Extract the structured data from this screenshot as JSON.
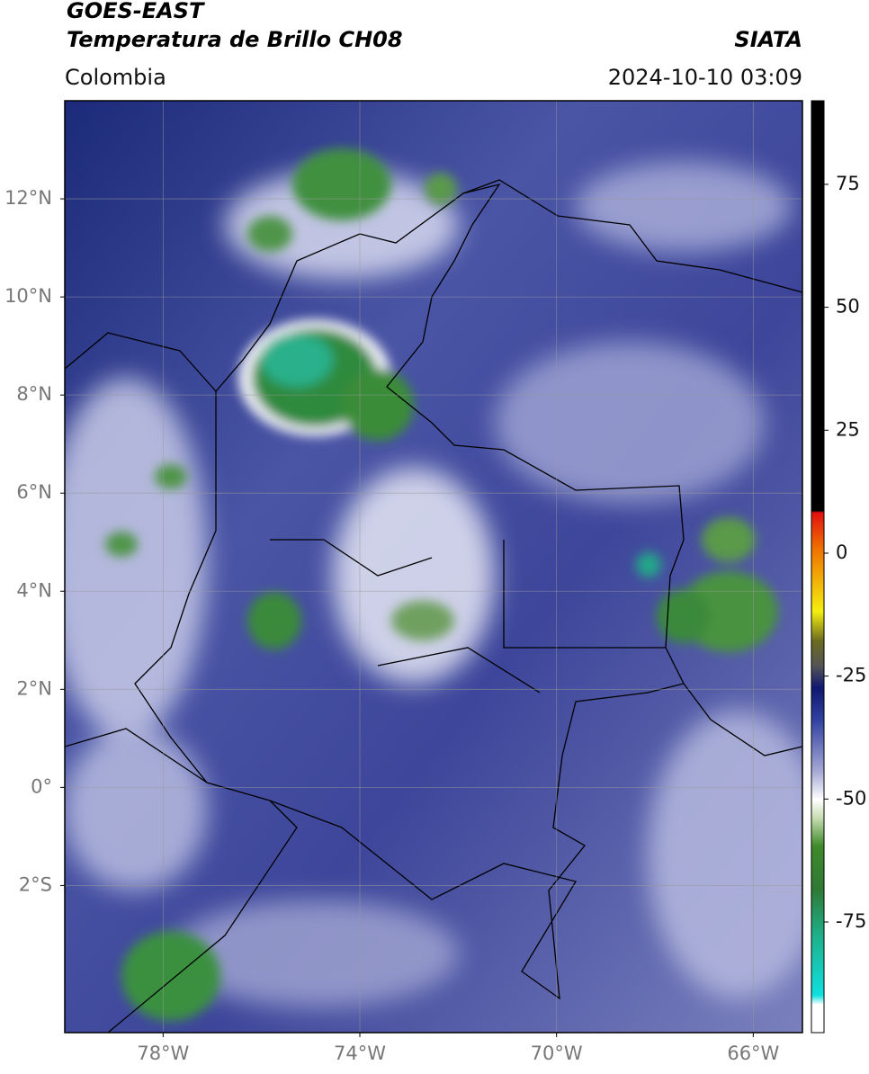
{
  "chart_data": {
    "type": "map",
    "title": "GOES-EAST",
    "subtitle": "Temperatura de Brillo CH08",
    "source": "SIATA",
    "region": "Colombia",
    "datetime": "2024-10-10 03:09",
    "xlim": [
      -80,
      -65
    ],
    "ylim": [
      -5,
      14
    ],
    "xticks": [
      {
        "value": -78,
        "label": "78°W"
      },
      {
        "value": -74,
        "label": "74°W"
      },
      {
        "value": -70,
        "label": "70°W"
      },
      {
        "value": -66,
        "label": "66°W"
      }
    ],
    "yticks": [
      {
        "value": 12,
        "label": "12°N"
      },
      {
        "value": 10,
        "label": "10°N"
      },
      {
        "value": 8,
        "label": "8°N"
      },
      {
        "value": 6,
        "label": "6°N"
      },
      {
        "value": 4,
        "label": "4°N"
      },
      {
        "value": 2,
        "label": "2°N"
      },
      {
        "value": 0,
        "label": "0°"
      },
      {
        "value": -2,
        "label": "2°S"
      }
    ],
    "grid": true,
    "colorbar": {
      "lim": [
        -97.5,
        92
      ],
      "ticks": [
        75,
        50,
        25,
        0,
        -25,
        -50,
        -75
      ]
    }
  }
}
